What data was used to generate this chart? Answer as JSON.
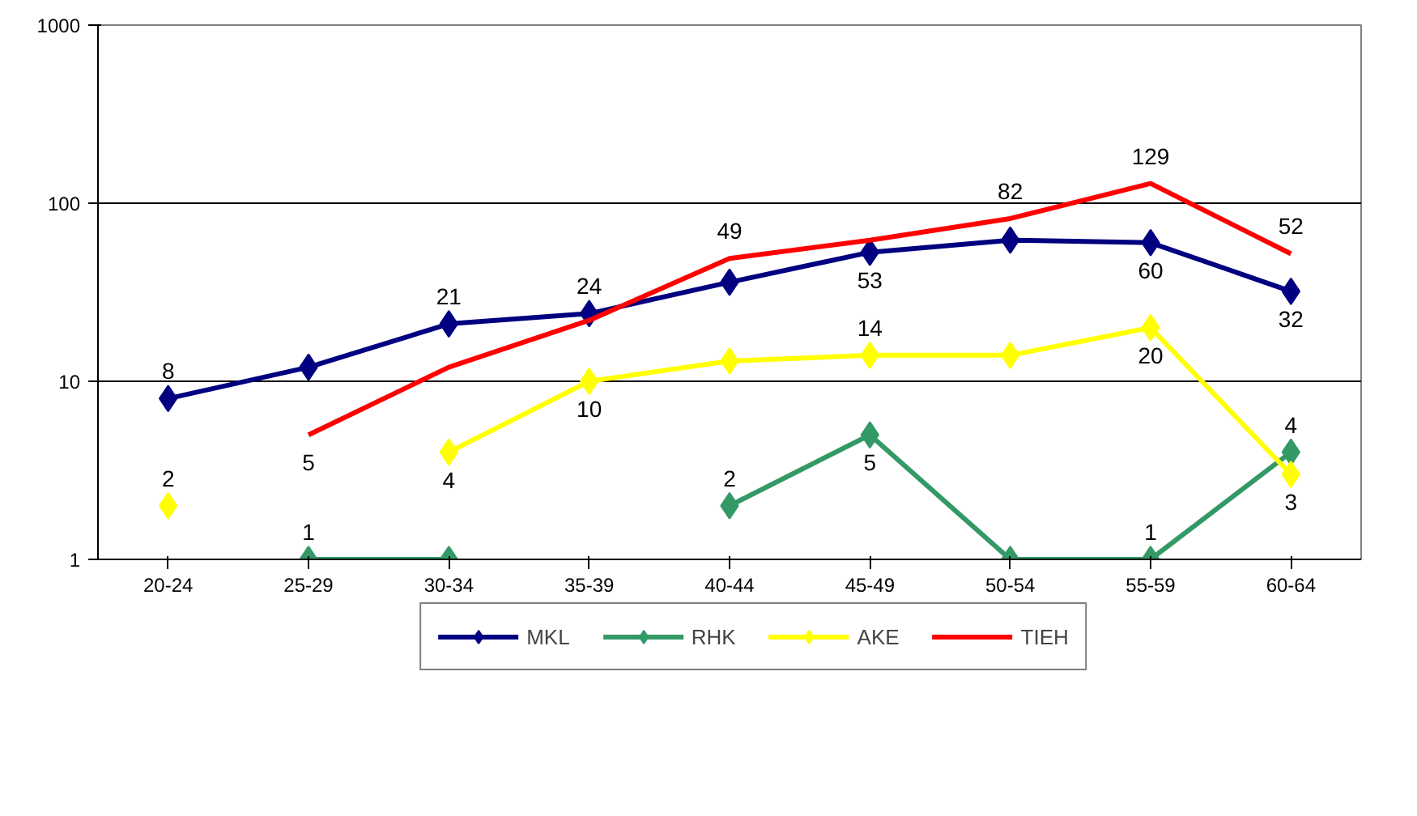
{
  "chart_data": {
    "type": "line",
    "categories": [
      "20-24",
      "25-29",
      "30-34",
      "35-39",
      "40-44",
      "45-49",
      "50-54",
      "55-59",
      "60-64"
    ],
    "log": true,
    "ylim": [
      1,
      1000
    ],
    "yticks": [
      1,
      10,
      100,
      1000
    ],
    "grid": "y",
    "legend": "bottom",
    "marker": "diamond",
    "series": [
      {
        "name": "MKL",
        "color": "#000080",
        "values": [
          8,
          12,
          21,
          24,
          36,
          53,
          62,
          60,
          32
        ],
        "value_labels": [
          "8",
          null,
          "21",
          "24",
          null,
          "53",
          null,
          "60",
          "32"
        ]
      },
      {
        "name": "RHK",
        "color": "#339966",
        "values": [
          null,
          1,
          1,
          null,
          2,
          5,
          1,
          1,
          4
        ],
        "value_labels": [
          null,
          "1",
          null,
          null,
          "2",
          "5",
          null,
          "1",
          "4"
        ]
      },
      {
        "name": "AKE",
        "color": "#ffff00",
        "values": [
          2,
          null,
          4,
          10,
          13,
          14,
          14,
          20,
          3
        ],
        "value_labels": [
          "2",
          null,
          "4",
          "10",
          null,
          "14",
          null,
          "20",
          "3"
        ]
      },
      {
        "name": "TIEH",
        "color": "#ff0000",
        "marker": "none",
        "values": [
          null,
          5,
          12,
          22,
          49,
          62,
          82,
          129,
          52
        ],
        "value_labels": [
          null,
          "5",
          null,
          null,
          "49",
          null,
          "82",
          "129",
          "52"
        ]
      }
    ]
  }
}
